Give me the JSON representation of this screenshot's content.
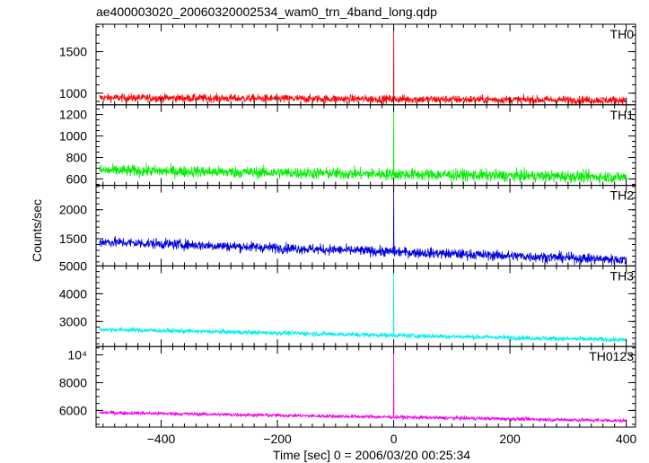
{
  "chart_data": {
    "type": "line",
    "title": "ae400003020_20060320002534_wam0_trn_4band_long.qdp",
    "xlabel": "Time [sec] 0 = 2006/03/20 00:25:34",
    "ylabel": "Counts/sec",
    "xlim": [
      -512,
      416
    ],
    "x_ticks": [
      -400,
      -200,
      0,
      200,
      400
    ],
    "x_tick_labels": [
      "−400",
      "−200",
      "0",
      "200",
      "400"
    ],
    "x_minor_step": 20,
    "grid": false,
    "panels": [
      {
        "name": "TH0",
        "color": "#ff0000",
        "ylim": [
          860,
          1830
        ],
        "ticks": [
          1000,
          1500
        ],
        "tick_labels": [
          "1000",
          "1500"
        ],
        "minor_step": 100,
        "baseline": [
          [
            -512,
            945
          ],
          [
            416,
            915
          ]
        ],
        "noise": 25,
        "peak": 1830
      },
      {
        "name": "TH1",
        "color": "#00ee00",
        "ylim": [
          540,
          1290
        ],
        "ticks": [
          600,
          800,
          1000,
          1200
        ],
        "tick_labels": [
          "600",
          "800",
          "1000",
          "1200"
        ],
        "minor_step": 50,
        "baseline": [
          [
            -512,
            680
          ],
          [
            416,
            615
          ]
        ],
        "noise": 28,
        "peak": 1290
      },
      {
        "name": "TH2",
        "color": "#0000dd",
        "ylim": [
          1030,
          2420
        ],
        "ticks": [
          1500,
          2000
        ],
        "tick_labels": [
          "1500",
          "2000"
        ],
        "minor_step": 100,
        "baseline": [
          [
            -512,
            1450
          ],
          [
            416,
            1130
          ]
        ],
        "noise": 45,
        "peak": 2420
      },
      {
        "name": "TH3",
        "color": "#00eeee",
        "ylim": [
          2100,
          5000
        ],
        "ticks": [
          3000,
          4000,
          5000
        ],
        "tick_labels": [
          "3000",
          "4000",
          "5000"
        ],
        "minor_step": 200,
        "baseline": [
          [
            -512,
            2720
          ],
          [
            416,
            2330
          ]
        ],
        "noise": 45,
        "peak": 5000
      },
      {
        "name": "TH0123",
        "color": "#ee00ee",
        "ylim": [
          4800,
          10600
        ],
        "ticks": [
          6000,
          8000,
          10000
        ],
        "tick_labels": [
          "6000",
          "8000",
          "10⁴"
        ],
        "minor_step": 500,
        "baseline": [
          [
            -512,
            5850
          ],
          [
            416,
            5250
          ]
        ],
        "noise": 70,
        "peak": 10600
      }
    ]
  }
}
